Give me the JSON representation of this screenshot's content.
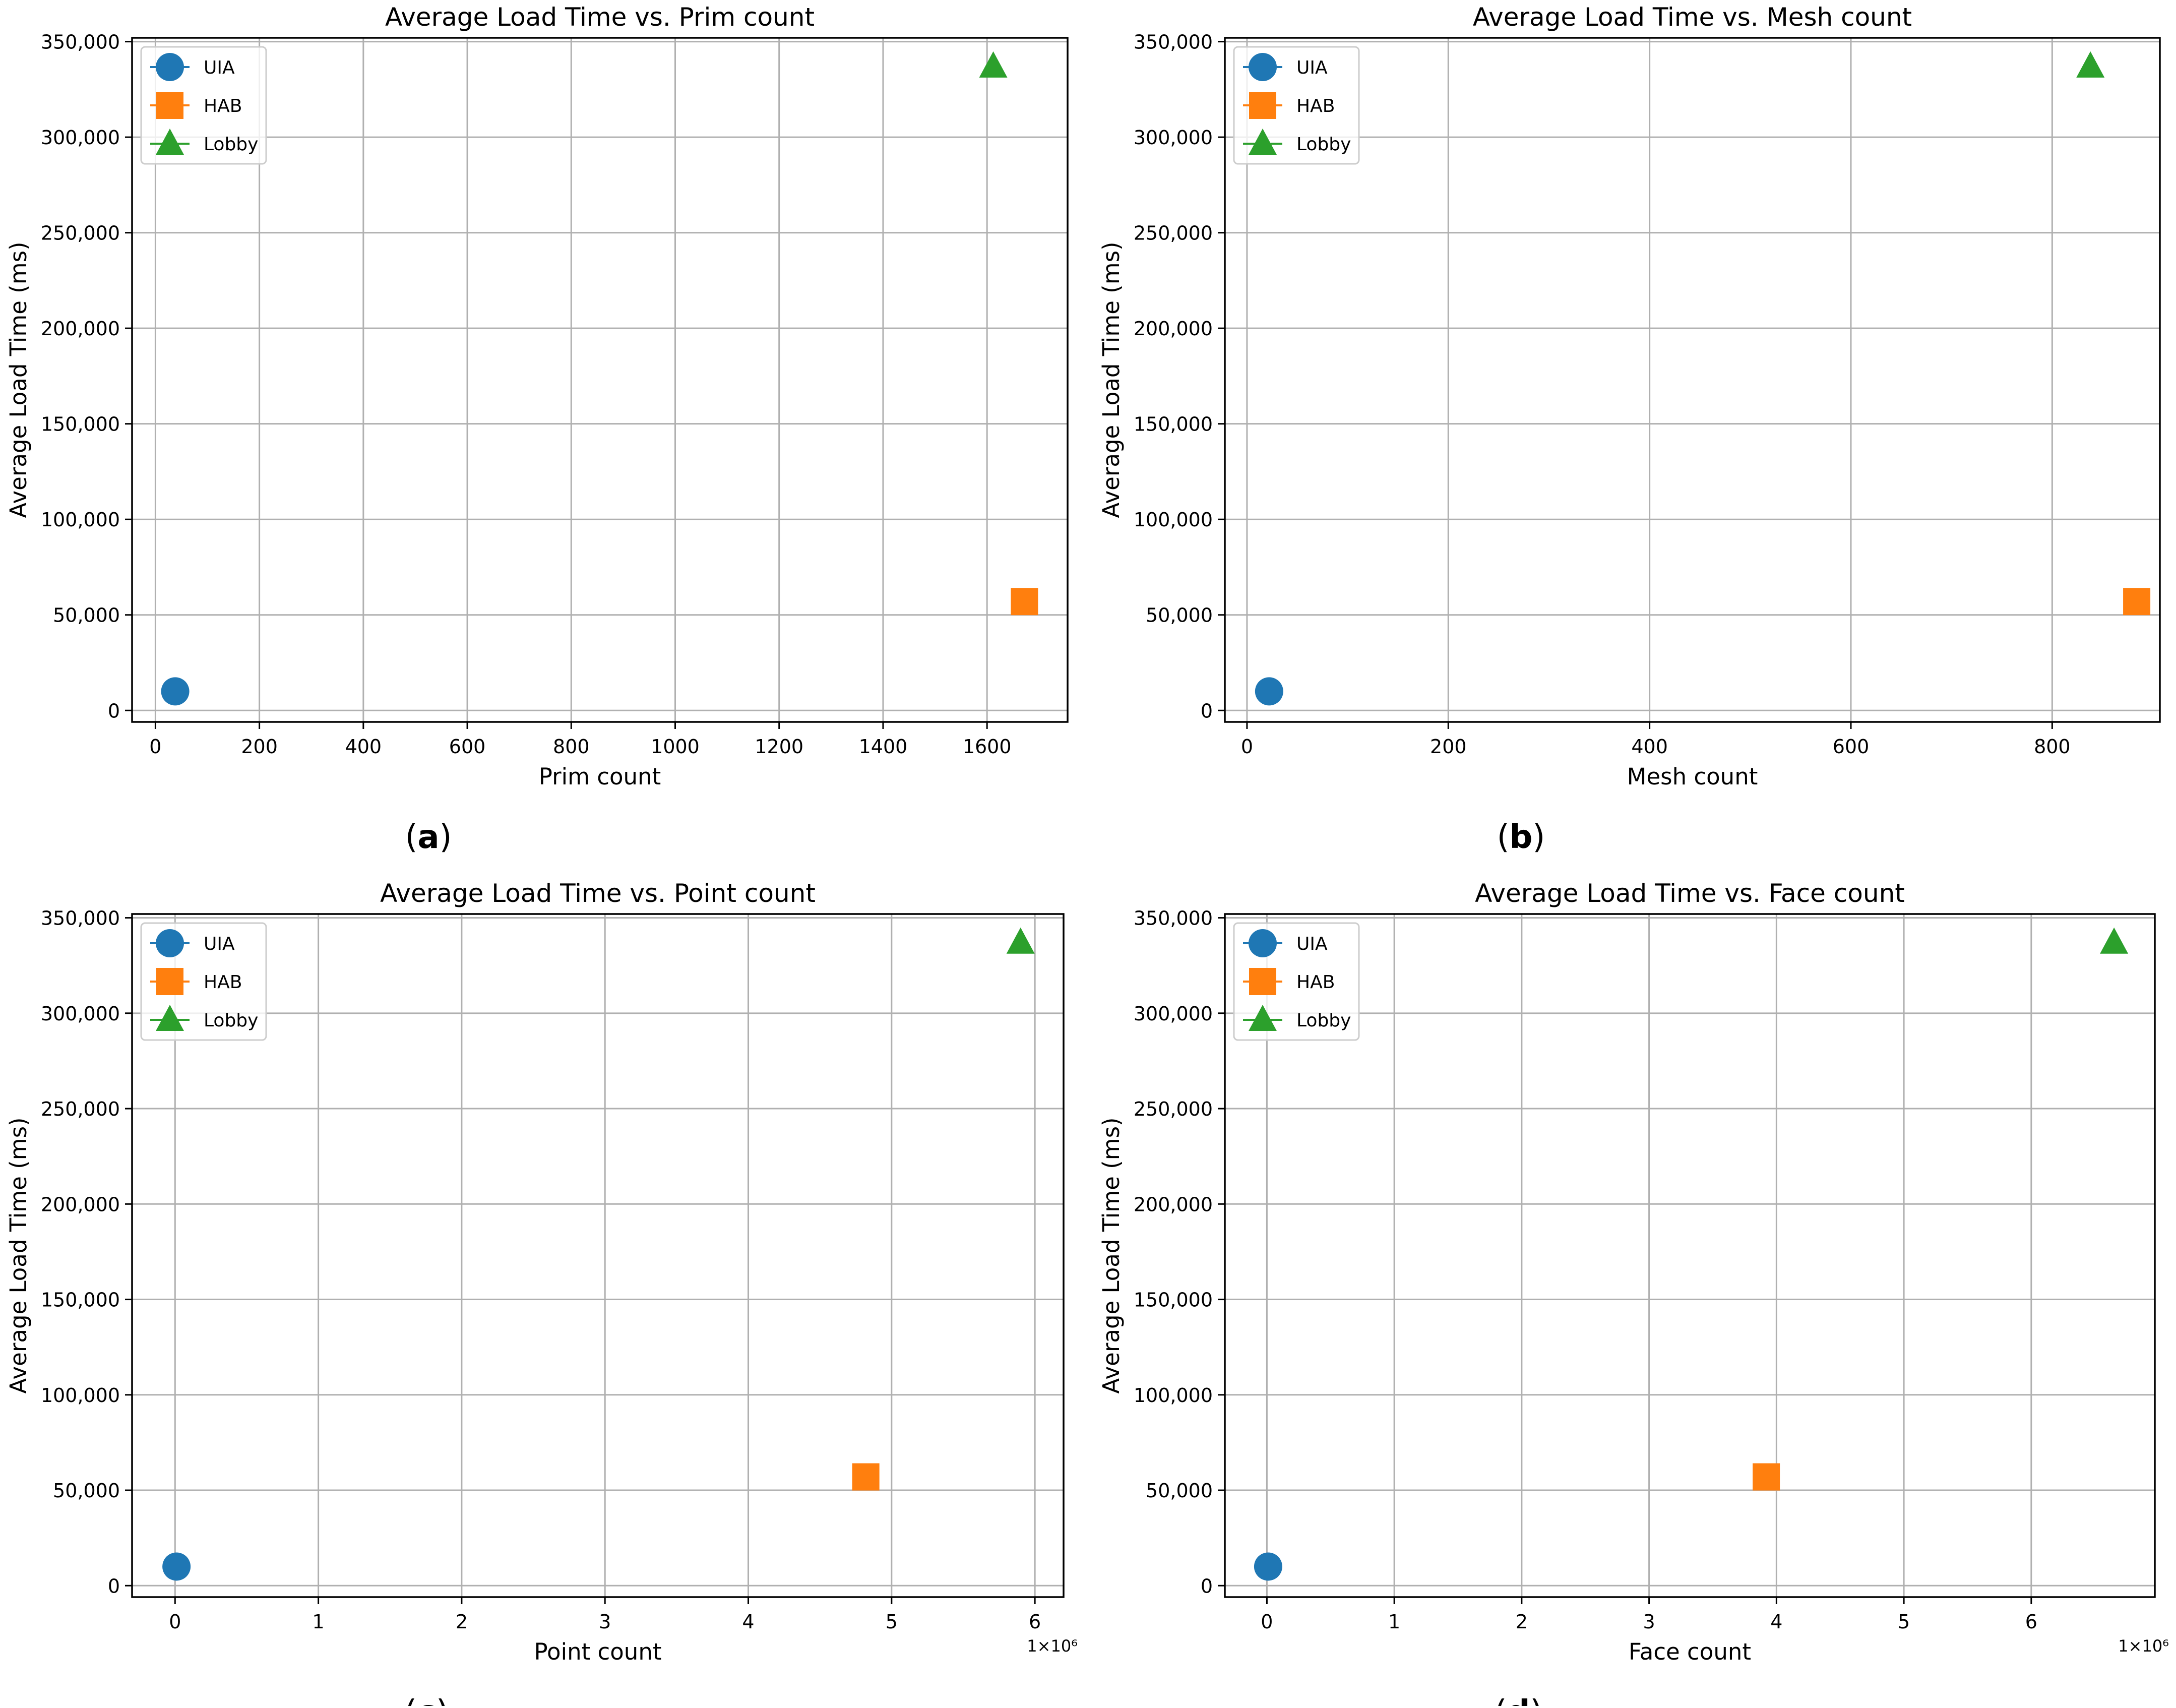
{
  "chart_data": [
    {
      "type": "scatter",
      "panel_label": "(a)",
      "title": "Average Load Time vs. Prim count",
      "xlabel": "Prim count",
      "ylabel": "Average Load Time (ms)",
      "xlim": [
        -45,
        1755
      ],
      "ylim": [
        -6000,
        352000
      ],
      "xticks": [
        0,
        200,
        400,
        600,
        800,
        1000,
        1200,
        1400,
        1600
      ],
      "xtick_labels": [
        "0",
        "200",
        "400",
        "600",
        "800",
        "1000",
        "1200",
        "1400",
        "1600"
      ],
      "x_offset_label": "",
      "yticks": [
        0,
        50000,
        100000,
        150000,
        200000,
        250000,
        300000,
        350000
      ],
      "ytick_labels": [
        "0",
        "50,000",
        "100,000",
        "150,000",
        "200,000",
        "250,000",
        "300,000",
        "350,000"
      ],
      "grid": true,
      "legend": "upper-left",
      "series": [
        {
          "name": "UIA",
          "marker": "circle",
          "color": "#1f77b4",
          "x": [
            38
          ],
          "y": [
            10000
          ]
        },
        {
          "name": "HAB",
          "marker": "square",
          "color": "#ff7f0e",
          "x": [
            1672
          ],
          "y": [
            57000
          ]
        },
        {
          "name": "Lobby",
          "marker": "triangle",
          "color": "#2ca02c",
          "x": [
            1612
          ],
          "y": [
            337000
          ]
        }
      ]
    },
    {
      "type": "scatter",
      "panel_label": "(b)",
      "title": "Average Load Time vs. Mesh count",
      "xlabel": "Mesh count",
      "ylabel": "Average Load Time (ms)",
      "xlim": [
        -22,
        907
      ],
      "ylim": [
        -6000,
        352000
      ],
      "xticks": [
        0,
        200,
        400,
        600,
        800
      ],
      "xtick_labels": [
        "0",
        "200",
        "400",
        "600",
        "800"
      ],
      "x_offset_label": "",
      "yticks": [
        0,
        50000,
        100000,
        150000,
        200000,
        250000,
        300000,
        350000
      ],
      "ytick_labels": [
        "0",
        "50,000",
        "100,000",
        "150,000",
        "200,000",
        "250,000",
        "300,000",
        "350,000"
      ],
      "grid": true,
      "legend": "upper-left",
      "series": [
        {
          "name": "UIA",
          "marker": "circle",
          "color": "#1f77b4",
          "x": [
            22
          ],
          "y": [
            10000
          ]
        },
        {
          "name": "HAB",
          "marker": "square",
          "color": "#ff7f0e",
          "x": [
            884
          ],
          "y": [
            57000
          ]
        },
        {
          "name": "Lobby",
          "marker": "triangle",
          "color": "#2ca02c",
          "x": [
            838
          ],
          "y": [
            337000
          ]
        }
      ]
    },
    {
      "type": "scatter",
      "panel_label": "(c)",
      "title": "Average Load Time vs. Point count",
      "xlabel": "Point count",
      "ylabel": "Average Load Time (ms)",
      "xlim": [
        -0.3,
        6.2
      ],
      "ylim": [
        -6000,
        352000
      ],
      "xticks": [
        0,
        1,
        2,
        3,
        4,
        5,
        6
      ],
      "xtick_labels": [
        "0",
        "1",
        "2",
        "3",
        "4",
        "5",
        "6"
      ],
      "x_offset_label": "1×10⁶",
      "yticks": [
        0,
        50000,
        100000,
        150000,
        200000,
        250000,
        300000,
        350000
      ],
      "ytick_labels": [
        "0",
        "50,000",
        "100,000",
        "150,000",
        "200,000",
        "250,000",
        "300,000",
        "350,000"
      ],
      "grid": true,
      "legend": "upper-left",
      "series": [
        {
          "name": "UIA",
          "marker": "circle",
          "color": "#1f77b4",
          "x": [
            0.01
          ],
          "y": [
            10000
          ]
        },
        {
          "name": "HAB",
          "marker": "square",
          "color": "#ff7f0e",
          "x": [
            4.82
          ],
          "y": [
            57000
          ]
        },
        {
          "name": "Lobby",
          "marker": "triangle",
          "color": "#2ca02c",
          "x": [
            5.9
          ],
          "y": [
            337000
          ]
        }
      ]
    },
    {
      "type": "scatter",
      "panel_label": "(d)",
      "title": "Average Load Time vs. Face count",
      "xlabel": "Face count",
      "ylabel": "Average Load Time (ms)",
      "xlim": [
        -0.33,
        6.97
      ],
      "ylim": [
        -6000,
        352000
      ],
      "xticks": [
        0,
        1,
        2,
        3,
        4,
        5,
        6
      ],
      "xtick_labels": [
        "0",
        "1",
        "2",
        "3",
        "4",
        "5",
        "6"
      ],
      "x_offset_label": "1×10⁶",
      "yticks": [
        0,
        50000,
        100000,
        150000,
        200000,
        250000,
        300000,
        350000
      ],
      "ytick_labels": [
        "0",
        "50,000",
        "100,000",
        "150,000",
        "200,000",
        "250,000",
        "300,000",
        "350,000"
      ],
      "grid": true,
      "legend": "upper-left",
      "series": [
        {
          "name": "UIA",
          "marker": "circle",
          "color": "#1f77b4",
          "x": [
            0.01
          ],
          "y": [
            10000
          ]
        },
        {
          "name": "HAB",
          "marker": "square",
          "color": "#ff7f0e",
          "x": [
            3.92
          ],
          "y": [
            57000
          ]
        },
        {
          "name": "Lobby",
          "marker": "triangle",
          "color": "#2ca02c",
          "x": [
            6.65
          ],
          "y": [
            337000
          ]
        }
      ]
    }
  ],
  "colors": {
    "grid": "#b0b0b0",
    "axes": "#000000",
    "text": "#000000",
    "legend_border": "#cccccc"
  }
}
